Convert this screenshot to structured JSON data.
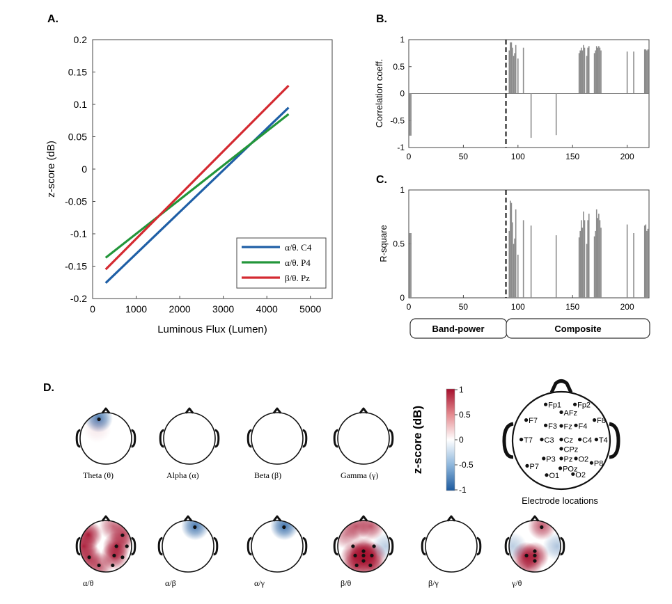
{
  "chart_data": [
    {
      "type": "line",
      "panel_label": "A.",
      "xlabel": "Luminous Flux (Lumen)",
      "ylabel": "z-score (dB)",
      "xlim": [
        0,
        5500
      ],
      "ylim": [
        -0.2,
        0.2
      ],
      "xticks": [
        0,
        1000,
        2000,
        3000,
        4000,
        5000
      ],
      "yticks": [
        -0.2,
        -0.15,
        -0.1,
        -0.05,
        0,
        0.05,
        0.1,
        0.15,
        0.2
      ],
      "xtick_labels": [
        "0",
        "1000",
        "2000",
        "3000",
        "4000",
        "5000"
      ],
      "ytick_labels": [
        "-0.2",
        "-0.15",
        "-0.1",
        "-0.05",
        "0",
        "0.05",
        "0.1",
        "0.15",
        "0.2"
      ],
      "legend_position": "bottom-right",
      "series": [
        {
          "name": "α/θ. C4",
          "color": "#1f5fa6",
          "x": [
            300,
            4500
          ],
          "y": [
            -0.176,
            0.095
          ]
        },
        {
          "name": "α/θ. P4",
          "color": "#23963a",
          "x": [
            300,
            4500
          ],
          "y": [
            -0.137,
            0.085
          ]
        },
        {
          "name": "β/θ. Pz",
          "color": "#d42a31",
          "x": [
            300,
            4500
          ],
          "y": [
            -0.155,
            0.129
          ]
        }
      ]
    },
    {
      "type": "bar",
      "panel_label": "B.",
      "ylabel": "Correlation coeff.",
      "xlim": [
        0,
        220
      ],
      "ylim": [
        -1,
        1
      ],
      "xticks": [
        0,
        50,
        100,
        150,
        200
      ],
      "xtick_labels": [
        "0",
        "50",
        "100",
        "150",
        "200"
      ],
      "yticks": [
        -1,
        -0.5,
        0,
        0.5,
        1
      ],
      "ytick_labels": [
        "-1",
        "-0.5",
        "0",
        "0.5",
        "1"
      ],
      "divider_x": 89,
      "bar_color": "#8c8c8c",
      "x": [
        1,
        2,
        92,
        93,
        94,
        95,
        96,
        97,
        98,
        100,
        105,
        112,
        135,
        156,
        157,
        158,
        159,
        160,
        161,
        163,
        164,
        165,
        170,
        171,
        172,
        173,
        174,
        175,
        176,
        200,
        206,
        216,
        217,
        218,
        219
      ],
      "values": [
        -0.78,
        -0.78,
        0.8,
        0.95,
        0.95,
        0.85,
        0.7,
        0.75,
        0.9,
        0.65,
        0.85,
        -0.82,
        -0.77,
        0.75,
        0.8,
        0.85,
        0.8,
        0.9,
        0.85,
        0.7,
        0.85,
        0.88,
        0.75,
        0.8,
        0.88,
        0.85,
        0.88,
        0.85,
        0.8,
        0.78,
        0.78,
        0.82,
        0.82,
        0.8,
        0.82
      ]
    },
    {
      "type": "bar",
      "panel_label": "C.",
      "ylabel": "R-square",
      "xlim": [
        0,
        220
      ],
      "ylim": [
        0,
        1
      ],
      "xticks": [
        0,
        50,
        100,
        150,
        200
      ],
      "xtick_labels": [
        "0",
        "50",
        "100",
        "150",
        "200"
      ],
      "yticks": [
        0,
        0.5,
        1
      ],
      "ytick_labels": [
        "0",
        "0.5",
        "1"
      ],
      "divider_x": 89,
      "bar_color": "#8c8c8c",
      "x": [
        1,
        2,
        92,
        93,
        94,
        95,
        96,
        97,
        98,
        100,
        105,
        112,
        135,
        156,
        157,
        158,
        159,
        160,
        161,
        163,
        164,
        165,
        170,
        171,
        172,
        173,
        174,
        175,
        176,
        200,
        206,
        216,
        217,
        218,
        219
      ],
      "values": [
        0.6,
        0.6,
        0.62,
        0.9,
        0.88,
        0.7,
        0.5,
        0.55,
        0.82,
        0.4,
        0.72,
        0.67,
        0.58,
        0.56,
        0.62,
        0.72,
        0.65,
        0.8,
        0.72,
        0.5,
        0.72,
        0.78,
        0.57,
        0.62,
        0.82,
        0.74,
        0.78,
        0.72,
        0.65,
        0.68,
        0.6,
        0.67,
        0.68,
        0.62,
        0.64
      ],
      "segments": [
        "Band-power",
        "Composite"
      ]
    },
    {
      "type": "heatmap",
      "panel_label": "D.",
      "colorbar_label": "z-score (dB)",
      "colorbar_ticks": [
        "1",
        "0.5",
        "0",
        "-0.5",
        "-1"
      ],
      "colorbar_range": [
        -1,
        1
      ],
      "colors": {
        "positive": "#a50f2d",
        "zero": "#ffffff",
        "negative": "#1d5a9e"
      },
      "maps_row1": [
        {
          "label": "Theta (θ)",
          "blobs": [
            {
              "electrode": "Fp1",
              "value": -0.8
            },
            {
              "electrode": "F3",
              "value": 0.1
            }
          ],
          "significant": [
            "Fp1"
          ]
        },
        {
          "label": "Alpha (α)",
          "blobs": [],
          "significant": []
        },
        {
          "label": "Beta (β)",
          "blobs": [],
          "significant": []
        },
        {
          "label": "Gamma (γ)",
          "blobs": [],
          "significant": []
        }
      ],
      "maps_row2": [
        {
          "label": "α/θ",
          "blobs": [
            {
              "electrode": "F7",
              "value": 0.95
            },
            {
              "electrode": "T7",
              "value": 0.9
            },
            {
              "electrode": "P7",
              "value": 0.85
            },
            {
              "electrode": "C4",
              "value": 0.9
            },
            {
              "electrode": "P4",
              "value": 0.85
            },
            {
              "electrode": "F8",
              "value": 0.8
            },
            {
              "electrode": "Fp2",
              "value": 0.6
            },
            {
              "electrode": "O1",
              "value": 0.7
            }
          ],
          "significant": [
            "F8",
            "T4",
            "C4",
            "P4",
            "P8",
            "O2",
            "O1",
            "P7"
          ]
        },
        {
          "label": "α/β",
          "blobs": [
            {
              "electrode": "Fp2",
              "value": -0.8
            }
          ],
          "significant": [
            "Fp2"
          ]
        },
        {
          "label": "α/γ",
          "blobs": [
            {
              "electrode": "Fp2",
              "value": -0.85
            }
          ],
          "significant": [
            "Fp2"
          ]
        },
        {
          "label": "β/θ",
          "blobs": [
            {
              "electrode": "Pz",
              "value": 0.95
            },
            {
              "electrode": "CPz",
              "value": 0.9
            },
            {
              "electrode": "P3",
              "value": 0.85
            },
            {
              "electrode": "P4",
              "value": 0.85
            },
            {
              "electrode": "O1",
              "value": 0.8
            },
            {
              "electrode": "O2",
              "value": 0.8
            },
            {
              "electrode": "Fp1",
              "value": 0.7
            },
            {
              "electrode": "Fp2",
              "value": 0.7
            },
            {
              "electrode": "F7",
              "value": 0.5
            },
            {
              "electrode": "T4",
              "value": -0.3
            }
          ],
          "significant": [
            "CPz",
            "P3",
            "Pz",
            "P4",
            "POz",
            "O1",
            "O2",
            "C3",
            "C4"
          ]
        },
        {
          "label": "β/γ",
          "blobs": [],
          "significant": []
        },
        {
          "label": "γ/θ",
          "blobs": [
            {
              "electrode": "Fp2",
              "value": 0.7
            },
            {
              "electrode": "P3",
              "value": 0.9
            },
            {
              "electrode": "Pz",
              "value": 0.85
            },
            {
              "electrode": "O1",
              "value": 0.6
            },
            {
              "electrode": "T7",
              "value": -0.3
            },
            {
              "electrode": "T4",
              "value": -0.35
            }
          ],
          "significant": [
            "Fp2",
            "P3",
            "Pz",
            "POz",
            "CPz"
          ]
        }
      ],
      "electrode_map_label": "Electrode locations",
      "electrodes": [
        "Fp1",
        "Fp2",
        "AFz",
        "F7",
        "F3",
        "Fz",
        "F4",
        "F8",
        "T7",
        "C3",
        "Cz",
        "C4",
        "T4",
        "CPz",
        "P3",
        "Pz",
        "O2",
        "P7",
        "P8",
        "POz",
        "O1",
        "O2"
      ]
    }
  ]
}
